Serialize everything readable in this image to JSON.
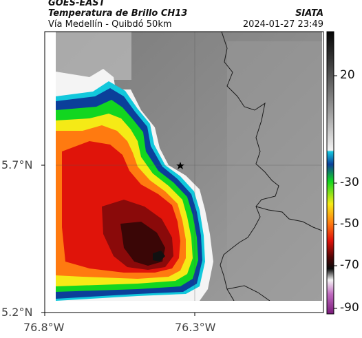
{
  "header": {
    "satellite": "GOES-EAST",
    "product": "Temperatura de Brillo CH13",
    "route": "Vía Medellín - Quibdó 50km",
    "org": "SIATA",
    "datetime": "2024-01-27 23:49"
  },
  "axes": {
    "lat_ticks": [
      {
        "label": "5.7°N",
        "value": 5.7
      },
      {
        "label": "5.2°N",
        "value": 5.2
      }
    ],
    "lon_ticks": [
      {
        "label": "76.8°W",
        "value": -76.8
      },
      {
        "label": "76.3°W",
        "value": -76.3
      }
    ]
  },
  "colorbar": {
    "unit_hint": "",
    "ticks": [
      {
        "label": "20",
        "value": 20
      },
      {
        "label": "-30",
        "value": -30
      },
      {
        "label": "-50",
        "value": -50
      },
      {
        "label": "-70",
        "value": -70
      },
      {
        "label": "-90",
        "value": -90
      }
    ],
    "range": [
      -95,
      40
    ]
  },
  "map": {
    "marker": "star-icon",
    "colors": {
      "cold_core": "#2a0608",
      "red": "#e0140a",
      "orange": "#ff7a10",
      "yellow": "#f6ea18",
      "green": "#10e020",
      "blue": "#0a3ea8",
      "background_gray": "#8a8a8a"
    }
  }
}
